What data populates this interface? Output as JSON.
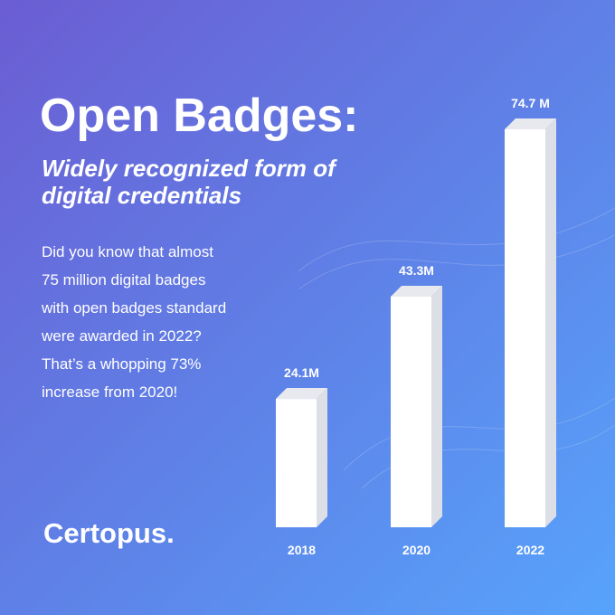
{
  "chart_data": {
    "type": "bar",
    "title": "Open Badges:",
    "subtitle": [
      "Widely recognized form of",
      "digital credentials"
    ],
    "description": [
      "Did you know that almost",
      "75 million digital badges",
      "with open badges standard",
      "were awarded in 2022?",
      "That’s a whopping 73%",
      "increase from 2020!"
    ],
    "brand": "Certopus.",
    "categories": [
      "2018",
      "2020",
      "2022"
    ],
    "values": [
      24.1,
      43.3,
      74.7
    ],
    "value_labels": [
      "24.1M",
      "43.3M",
      "74.7 M"
    ],
    "color": "#ffffff"
  }
}
